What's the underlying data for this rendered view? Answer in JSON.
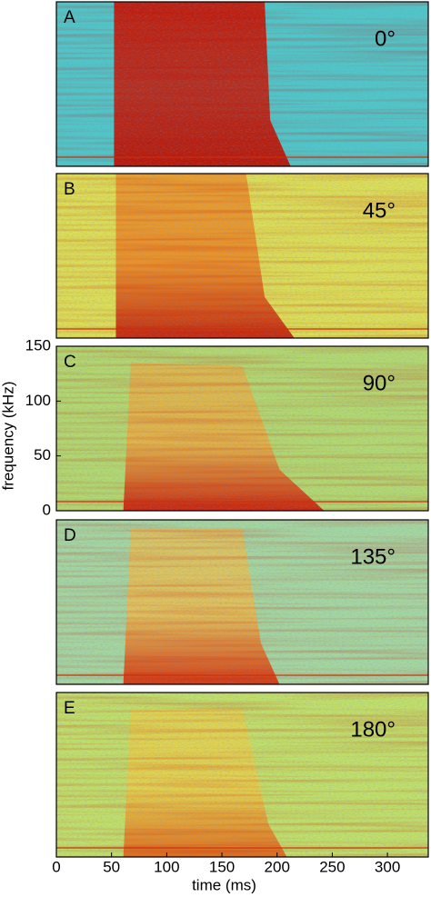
{
  "chart_data": [
    {
      "type": "spectrogram",
      "panel_label": "A",
      "annotation": "0°",
      "xlim": [
        0,
        337
      ],
      "ylim": [
        0,
        150
      ]
    },
    {
      "type": "spectrogram",
      "panel_label": "B",
      "annotation": "45°",
      "xlim": [
        0,
        337
      ],
      "ylim": [
        0,
        150
      ]
    },
    {
      "type": "spectrogram",
      "panel_label": "C",
      "annotation": "90°",
      "xlim": [
        0,
        337
      ],
      "ylim": [
        0,
        150
      ],
      "y_label": "frequency (kHz)",
      "yticks": [
        0,
        50,
        100,
        150
      ]
    },
    {
      "type": "spectrogram",
      "panel_label": "D",
      "annotation": "135°",
      "xlim": [
        0,
        337
      ],
      "ylim": [
        0,
        150
      ]
    },
    {
      "type": "spectrogram",
      "panel_label": "E",
      "annotation": "180°",
      "xlim": [
        0,
        337
      ],
      "ylim": [
        0,
        150
      ],
      "x_label": "time (ms)",
      "xticks": [
        0,
        50,
        100,
        150,
        200,
        250,
        300
      ]
    }
  ]
}
